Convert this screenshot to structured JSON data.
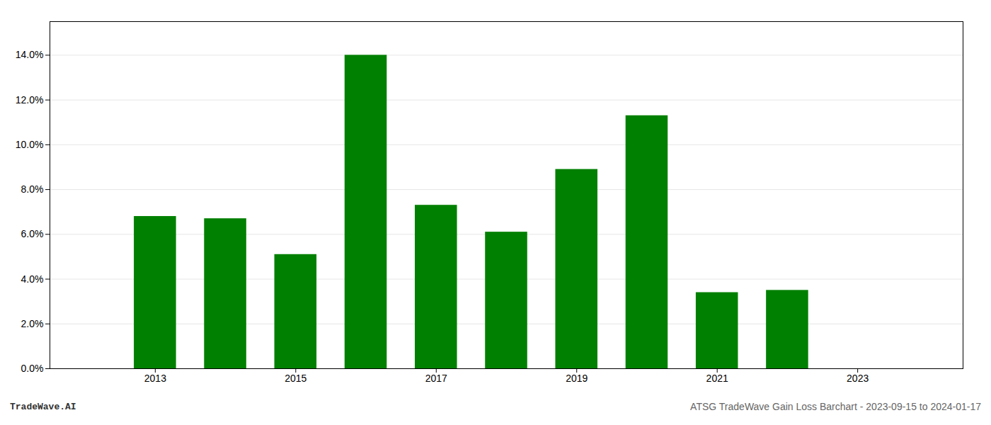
{
  "chart_data": {
    "type": "bar",
    "title": "ATSG TradeWave Gain Loss Barchart - 2023-09-15 to 2024-01-17",
    "annotations": [
      "TradeWave.AI"
    ],
    "x": [
      2013,
      2014,
      2015,
      2016,
      2017,
      2018,
      2019,
      2020,
      2021,
      2022,
      2023
    ],
    "values": [
      0.068,
      0.067,
      0.051,
      0.14,
      0.073,
      0.061,
      0.089,
      0.113,
      0.034,
      0.035,
      null
    ],
    "color": "#008000",
    "xlim": [
      2011.5,
      2024.5
    ],
    "xticks": [
      2013,
      2015,
      2017,
      2019,
      2021,
      2023
    ],
    "ylim": [
      0,
      0.155
    ],
    "yticks": [
      {
        "value": 0.0,
        "label": "0.0%"
      },
      {
        "value": 0.02,
        "label": "2.0%"
      },
      {
        "value": 0.04,
        "label": "4.0%"
      },
      {
        "value": 0.06,
        "label": "6.0%"
      },
      {
        "value": 0.08,
        "label": "8.0%"
      },
      {
        "value": 0.1,
        "label": "10.0%"
      },
      {
        "value": 0.12,
        "label": "12.0%"
      },
      {
        "value": 0.14,
        "label": "14.0%"
      }
    ],
    "grid": true
  }
}
